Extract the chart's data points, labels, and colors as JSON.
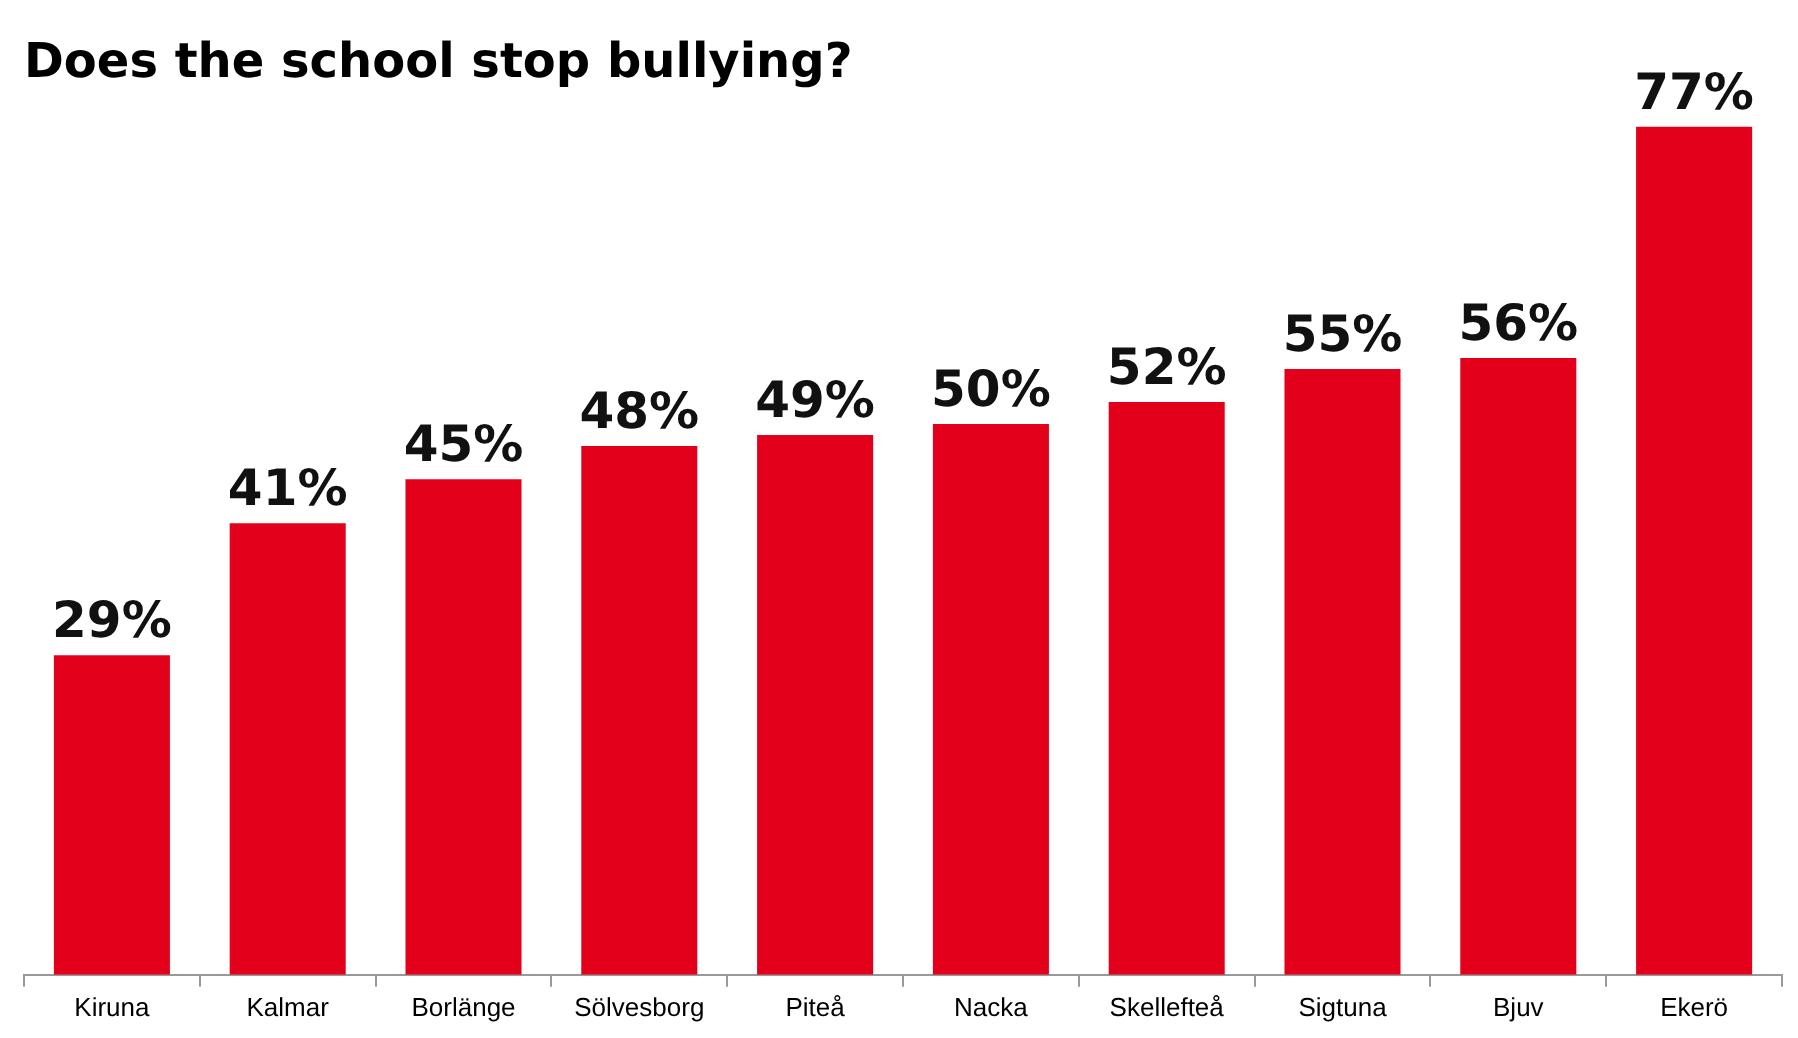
{
  "chart_data": {
    "type": "bar",
    "title": "Does the school stop bullying?",
    "categories": [
      "Kiruna",
      "Kalmar",
      "Borlänge",
      "Sölvesborg",
      "Piteå",
      "Nacka",
      "Skellefteå",
      "Sigtuna",
      "Bjuv",
      "Ekerö"
    ],
    "values": [
      29,
      41,
      45,
      48,
      49,
      50,
      52,
      55,
      56,
      77
    ],
    "value_labels": [
      "29%",
      "41%",
      "45%",
      "48%",
      "49%",
      "50%",
      "52%",
      "55%",
      "56%",
      "77%"
    ],
    "color": "#e2001a",
    "grid": false,
    "legend": false
  }
}
